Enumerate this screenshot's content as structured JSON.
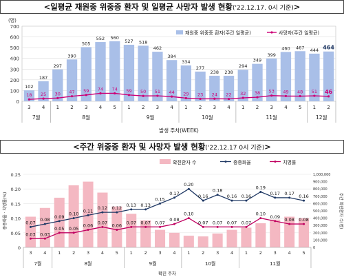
{
  "chart_data": [
    {
      "type": "bar",
      "title_prefix": "<일평균 재원중 위중증 환자 및 일평균 사망자 발생 현황",
      "title_note": "('22.12.17. 0시 기준)",
      "title_suffix": ">",
      "y_unit": "(명)",
      "xlabel": "발생 주차(WEEK)",
      "ylim": [
        0,
        700
      ],
      "yticks": [
        0,
        100,
        200,
        300,
        400,
        500,
        600,
        700
      ],
      "categories": [
        "3",
        "4",
        "1",
        "2",
        "3",
        "4",
        "5",
        "1",
        "2",
        "3",
        "4",
        "1",
        "2",
        "3",
        "4",
        "1",
        "2",
        "3",
        "4",
        "5",
        "1",
        "2"
      ],
      "month_groups": [
        {
          "label": "7월",
          "count": 2
        },
        {
          "label": "8월",
          "count": 5
        },
        {
          "label": "9월",
          "count": 4
        },
        {
          "label": "10월",
          "count": 4
        },
        {
          "label": "11월",
          "count": 5
        },
        {
          "label": "12월",
          "count": 2
        }
      ],
      "series": [
        {
          "name": "재원중 위중증 환자(주간 일평균)",
          "type": "bar",
          "color": "#a9bfe8",
          "values": [
            102,
            187,
            297,
            390,
            505,
            552,
            560,
            527,
            518,
            462,
            384,
            334,
            277,
            238,
            238,
            294,
            349,
            399,
            460,
            467,
            444,
            464
          ]
        },
        {
          "name": "사망자(주간 일평균)",
          "type": "line",
          "color": "#cc0077",
          "values": [
            18,
            25,
            30,
            47,
            59,
            74,
            74,
            59,
            50,
            51,
            44,
            29,
            23,
            24,
            22,
            32,
            38,
            53,
            49,
            48,
            51,
            46
          ]
        }
      ],
      "legend_position": "top-right"
    },
    {
      "type": "bar",
      "title_prefix": "<주간 위중증 환자 및 사망자 발생 현황",
      "title_note": "('22.12.17 0시 기준)",
      "title_suffix": ">",
      "xlabel": "확진 주차",
      "ylabel_left": "중증화율 · 치명률(%)",
      "ylabel_right": "주간 확진환자 수(명)",
      "ylim_left": [
        0,
        0.25
      ],
      "yticks_left": [
        "0",
        "0.05",
        "0.10",
        "0.15",
        "0.20",
        "0.25"
      ],
      "ylim_right": [
        0,
        1000000
      ],
      "yticks_right": [
        "0",
        "100,000",
        "200,000",
        "300,000",
        "400,000",
        "500,000",
        "600,000",
        "700,000",
        "800,000",
        "900,000",
        "1,000,000"
      ],
      "categories": [
        "3",
        "4",
        "1",
        "2",
        "3",
        "4",
        "5",
        "1",
        "2",
        "3",
        "4",
        "1",
        "2",
        "3",
        "4",
        "1",
        "2",
        "3",
        "4",
        "5"
      ],
      "month_groups": [
        {
          "label": "7월",
          "count": 2
        },
        {
          "label": "8월",
          "count": 5
        },
        {
          "label": "9월",
          "count": 4
        },
        {
          "label": "10월",
          "count": 4
        },
        {
          "label": "11월",
          "count": 5
        }
      ],
      "series": [
        {
          "name": "확진환자 수",
          "type": "bar",
          "axis": "right",
          "color": "#f4b8c2",
          "values": [
            420000,
            540000,
            680000,
            850000,
            900000,
            750000,
            560000,
            460000,
            370000,
            240000,
            200000,
            160000,
            150000,
            190000,
            240000,
            270000,
            330000,
            380000,
            420000,
            400000
          ]
        },
        {
          "name": "중증화율",
          "type": "line",
          "axis": "left",
          "color": "#1f3864",
          "values": [
            0.07,
            0.08,
            0.09,
            0.1,
            0.11,
            0.12,
            0.12,
            0.13,
            0.13,
            0.15,
            0.17,
            0.2,
            0.16,
            0.18,
            0.16,
            0.16,
            0.19,
            0.17,
            0.17,
            0.16
          ]
        },
        {
          "name": "치명률",
          "type": "line",
          "axis": "left",
          "color": "#c00060",
          "values": [
            0.03,
            0.03,
            0.05,
            0.05,
            0.06,
            0.07,
            0.06,
            0.07,
            0.07,
            0.07,
            0.08,
            0.1,
            0.07,
            0.07,
            0.07,
            0.07,
            0.1,
            0.09,
            0.08,
            0.08
          ]
        }
      ],
      "legend_position": "top"
    }
  ]
}
